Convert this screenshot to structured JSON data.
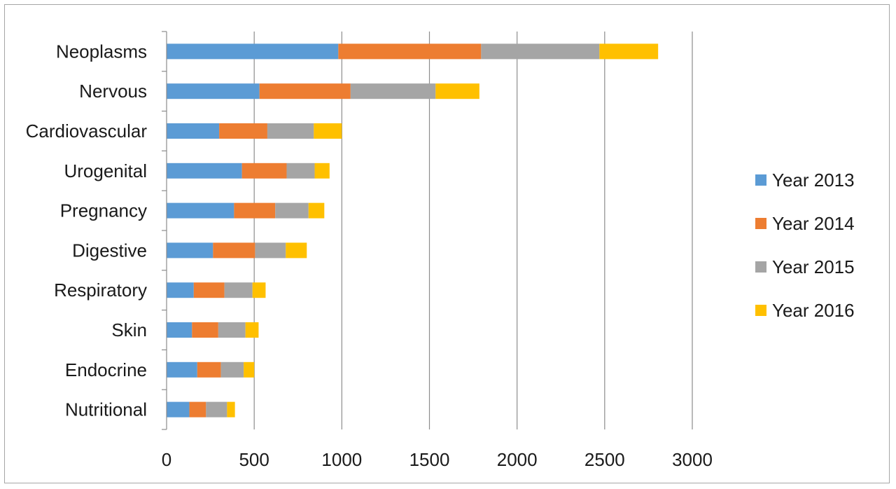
{
  "chart_data": {
    "type": "bar",
    "orientation": "horizontal",
    "stacked": true,
    "title": "",
    "xlabel": "",
    "ylabel": "",
    "xlim": [
      0,
      3000
    ],
    "x_ticks": [
      "0",
      "500",
      "1000",
      "1500",
      "2000",
      "2500",
      "3000"
    ],
    "grid": true,
    "legend_position": "right",
    "categories": [
      "Neoplasms",
      "Nervous",
      "Cardiovascular",
      "Urogenital",
      "Pregnancy",
      "Digestive",
      "Respiratory",
      "Skin",
      "Endocrine",
      "Nutritional"
    ],
    "series": [
      {
        "name": "Year 2013",
        "color": "#5b9bd5",
        "values": [
          980,
          530,
          300,
          430,
          385,
          265,
          155,
          145,
          175,
          130
        ]
      },
      {
        "name": "Year 2014",
        "color": "#ed7d31",
        "values": [
          815,
          520,
          275,
          255,
          235,
          240,
          175,
          150,
          135,
          95
        ]
      },
      {
        "name": "Year 2015",
        "color": "#a5a5a5",
        "values": [
          675,
          485,
          265,
          160,
          190,
          175,
          160,
          155,
          130,
          120
        ]
      },
      {
        "name": "Year 2016",
        "color": "#ffc000",
        "values": [
          335,
          250,
          160,
          85,
          90,
          120,
          75,
          75,
          60,
          45
        ]
      }
    ]
  }
}
